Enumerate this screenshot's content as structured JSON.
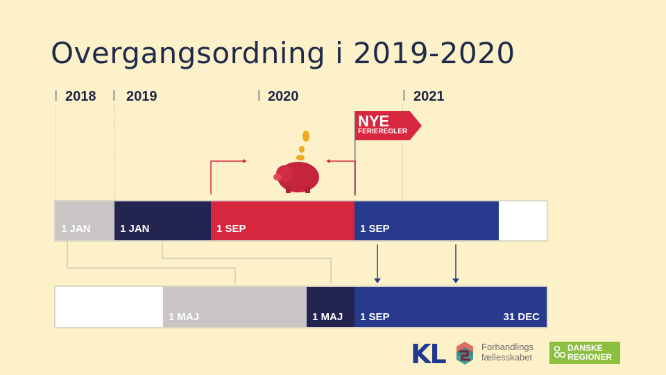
{
  "title": "Overgangsordning i 2019-2020",
  "years": [
    "2018",
    "2019",
    "2020",
    "2021"
  ],
  "flag": {
    "big": "NYE",
    "small": "FERIEREGLER"
  },
  "top_bar_labels": [
    "1 JAN",
    "1 JAN",
    "1 SEP",
    "1 SEP"
  ],
  "bottom_bar_labels": [
    "1 MAJ",
    "1 MAJ",
    "1 SEP",
    "31 DEC"
  ],
  "logos": {
    "kl": "KL",
    "ff_line1": "Forhandlings",
    "ff_line2": "fællesskabet",
    "dr_line1": "DANSKE",
    "dr_line2": "REGIONER"
  },
  "colors": {
    "background": "#fdf1c9",
    "grey": "#c8c5c4",
    "navy": "#232550",
    "red": "#d7273f",
    "blue": "#283a8c",
    "white": "#ffffff"
  }
}
